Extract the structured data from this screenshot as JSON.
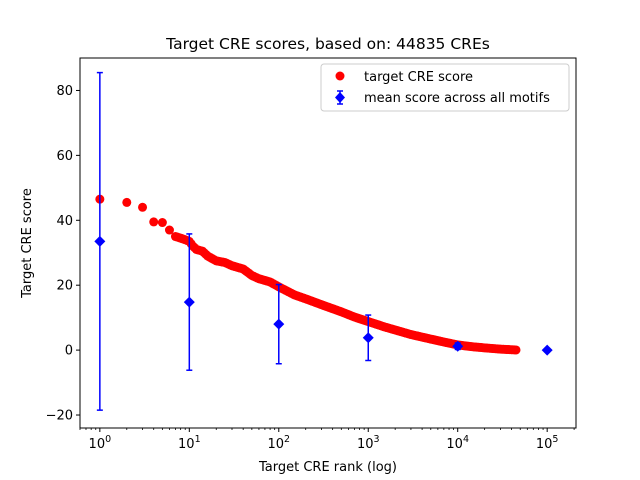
{
  "chart_data": {
    "type": "scatter",
    "title": "Target CRE scores, based on: 44835 CREs",
    "xlabel": "Target CRE rank (log)",
    "ylabel": "Target CRE score",
    "xscale": "log",
    "xlim": [
      0.6,
      210000
    ],
    "ylim": [
      -24,
      90
    ],
    "yticks": [
      -20,
      0,
      20,
      40,
      60,
      80
    ],
    "xticks": [
      {
        "value": 1,
        "base": "10",
        "exp": "0"
      },
      {
        "value": 10,
        "base": "10",
        "exp": "1"
      },
      {
        "value": 100,
        "base": "10",
        "exp": "2"
      },
      {
        "value": 1000,
        "base": "10",
        "exp": "3"
      },
      {
        "value": 10000,
        "base": "10",
        "exp": "4"
      },
      {
        "value": 100000,
        "base": "10",
        "exp": "5"
      }
    ],
    "legend_position": "top-right",
    "series": [
      {
        "name": "target CRE score",
        "marker": "circle",
        "color": "#ff0000",
        "x": [
          1,
          2,
          3,
          4,
          5,
          6,
          7,
          8,
          9,
          10,
          11,
          12,
          14,
          16,
          20,
          25,
          30,
          40,
          50,
          60,
          80,
          100,
          150,
          200,
          300,
          500,
          700,
          1000,
          1500,
          2000,
          3000,
          5000,
          7000,
          10000,
          15000,
          20000,
          30000,
          44835
        ],
        "y": [
          46.5,
          45.5,
          44.0,
          39.5,
          39.3,
          37.0,
          35.0,
          34.5,
          34.0,
          33.5,
          32.0,
          31.0,
          30.5,
          29.0,
          27.5,
          27.0,
          26.0,
          25.0,
          23.0,
          22.0,
          21.0,
          19.5,
          17.0,
          15.8,
          14.0,
          11.8,
          10.2,
          8.8,
          7.2,
          6.2,
          4.8,
          3.4,
          2.5,
          1.6,
          1.0,
          0.7,
          0.3,
          0.05
        ]
      },
      {
        "name": "mean score across all motifs",
        "marker": "diamond",
        "color": "#0000ff",
        "x": [
          1,
          10,
          100,
          1000,
          10000,
          100000
        ],
        "y": [
          33.5,
          14.8,
          8.0,
          3.8,
          1.2,
          0.0
        ],
        "yerr": [
          52.0,
          21.0,
          12.2,
          7.0,
          1.0,
          0.0
        ]
      }
    ]
  }
}
